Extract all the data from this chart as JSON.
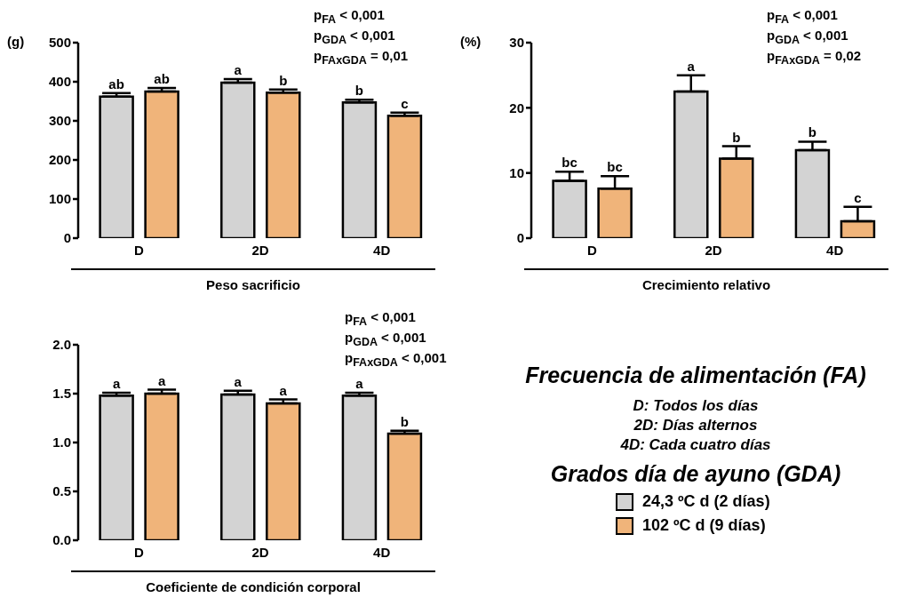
{
  "chart_data": [
    {
      "type": "bar",
      "xlabel": "Peso sacrificio",
      "ylabel": "(g)",
      "categories": [
        "D",
        "2D",
        "4D"
      ],
      "ylim": [
        0,
        500
      ],
      "yticks": [
        0,
        100,
        200,
        300,
        400,
        500
      ],
      "legend": false,
      "series": [
        {
          "color": "#d3d3d3",
          "values": [
            362,
            398,
            347
          ],
          "errors": [
            [
              362,
              371
            ],
            [
              398,
              407
            ],
            [
              347,
              354
            ]
          ],
          "value_labels": [
            "ab",
            "a",
            "b"
          ]
        },
        {
          "color": "#f0b47a",
          "values": [
            375,
            372,
            313
          ],
          "errors": [
            [
              375,
              384
            ],
            [
              372,
              380
            ],
            [
              313,
              321
            ]
          ],
          "value_labels": [
            "ab",
            "b",
            "c"
          ]
        }
      ],
      "annotations": [
        "p$_{FA}$ < 0,001",
        "p$_{GDA}$ < 0,001",
        "p$_{FAxGDA}$ = 0,01"
      ]
    },
    {
      "type": "bar",
      "xlabel": "Crecimiento relativo",
      "ylabel": "(%)",
      "categories": [
        "D",
        "2D",
        "4D"
      ],
      "ylim": [
        0,
        30
      ],
      "yticks": [
        0,
        10,
        20,
        30
      ],
      "legend": false,
      "series": [
        {
          "color": "#d3d3d3",
          "values": [
            8.8,
            22.5,
            13.5
          ],
          "errors": [
            [
              8.8,
              10.2
            ],
            [
              22.5,
              25
            ],
            [
              13.5,
              14.8
            ]
          ],
          "value_labels": [
            "bc",
            "a",
            "b"
          ]
        },
        {
          "color": "#f0b47a",
          "values": [
            7.6,
            12.2,
            2.6
          ],
          "errors": [
            [
              7.6,
              9.5
            ],
            [
              12.2,
              14.1
            ],
            [
              2.6,
              4.8
            ]
          ],
          "value_labels": [
            "bc",
            "b",
            "c"
          ]
        }
      ],
      "annotations": [
        "p$_{FA}$ < 0,001",
        "p$_{GDA}$ < 0,001",
        "p$_{FAxGDA}$ = 0,02"
      ]
    },
    {
      "type": "bar",
      "xlabel": "Coeficiente de condición corporal",
      "categories": [
        "D",
        "2D",
        "4D"
      ],
      "ylim": [
        0,
        2
      ],
      "yticks": [
        {
          "value": 0,
          "label": "0.0"
        },
        {
          "value": 0.5,
          "label": "0.5"
        },
        {
          "value": 1,
          "label": "1.0"
        },
        {
          "value": 1.5,
          "label": "1.5"
        },
        {
          "value": 2,
          "label": "2.0"
        }
      ],
      "legend": "right",
      "legend_title": "Grados día de ayuno (GDA)",
      "series": [
        {
          "name": "24,3 ºC d (2 días)",
          "color": "#d3d3d3",
          "values": [
            1.48,
            1.49,
            1.48
          ],
          "errors": [
            [
              1.48,
              1.51
            ],
            [
              1.49,
              1.53
            ],
            [
              1.48,
              1.51
            ]
          ],
          "value_labels": [
            "a",
            "a",
            "a"
          ]
        },
        {
          "name": "102 ºC d (9 días)",
          "color": "#f0b47a",
          "values": [
            1.5,
            1.4,
            1.09
          ],
          "errors": [
            [
              1.5,
              1.54
            ],
            [
              1.4,
              1.44
            ],
            [
              1.09,
              1.12
            ]
          ],
          "value_labels": [
            "a",
            "a",
            "b"
          ]
        }
      ],
      "annotations": [
        "p$_{FA}$ < 0,001",
        "p$_{GDA}$ < 0,001",
        "p$_{FAxGDA}$ < 0,001",
        "Frecuencia de alimentación (FA)",
        "D: Todos los días",
        "2D: Días alternos",
        "4D: Cada cuatro días"
      ]
    }
  ]
}
